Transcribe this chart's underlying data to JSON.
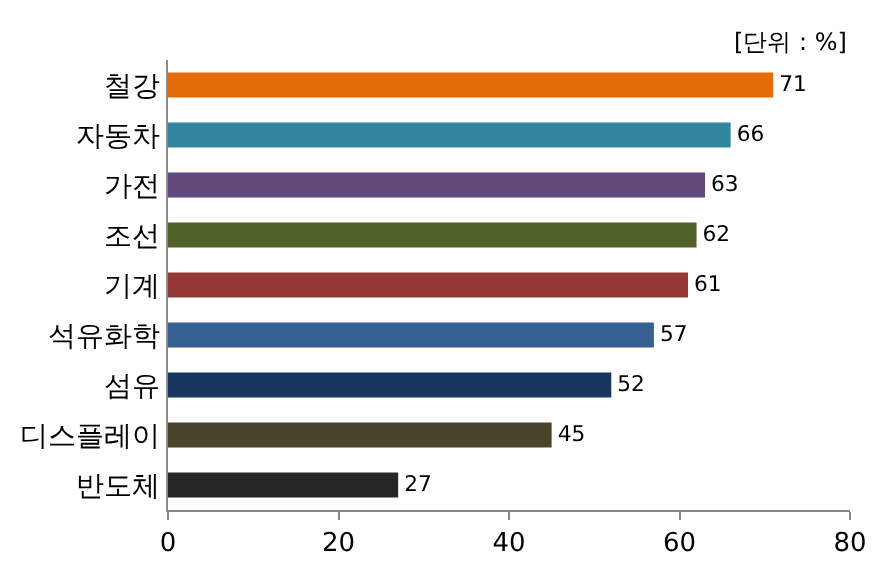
{
  "chart_data": {
    "type": "bar",
    "orientation": "horizontal",
    "categories": [
      "철강",
      "자동차",
      "가전",
      "조선",
      "기계",
      "석유화학",
      "섬유",
      "디스플레이",
      "반도체"
    ],
    "values": [
      71,
      66,
      63,
      62,
      61,
      57,
      52,
      45,
      27
    ],
    "colors": [
      "#e46c0a",
      "#31859c",
      "#604a7b",
      "#4f6228",
      "#953735",
      "#376092",
      "#17375e",
      "#4a452a",
      "#262626"
    ],
    "xlim": [
      0,
      80
    ],
    "xticks": [
      0,
      20,
      40,
      60,
      80
    ],
    "data_labels": true,
    "annotations": [
      "[단위 : %]"
    ]
  }
}
